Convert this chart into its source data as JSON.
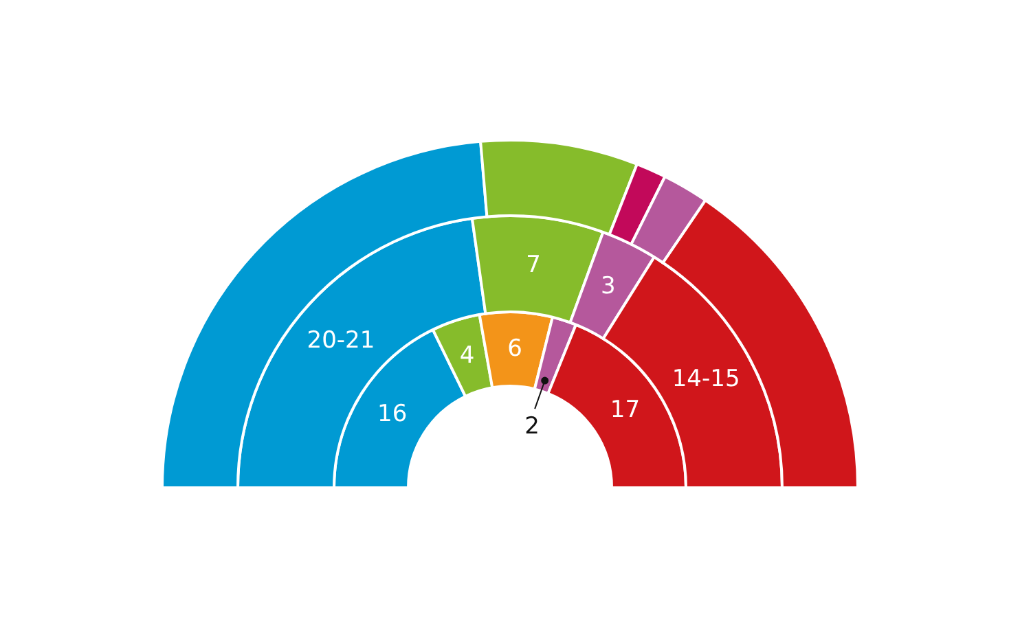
{
  "chart_data": {
    "type": "donut",
    "series": [
      {
        "values": [
          16,
          4,
          6,
          2,
          17
        ],
        "colors": [
          "#009ad3",
          "#86bc2b",
          "#f39419",
          "#b5589c",
          "#d0161b"
        ],
        "value_labels": [
          "16",
          "4",
          "6",
          "2",
          "17"
        ]
      },
      {
        "values": [
          20.5,
          7,
          3,
          14.5
        ],
        "colors": [
          "#009ad3",
          "#86bc2b",
          "#b5589c",
          "#d0161b"
        ],
        "value_labels": [
          "20-21",
          "7",
          "3",
          "14-15"
        ]
      },
      {
        "values": [
          47.3,
          14.6,
          2.8,
          4.3,
          31.0
        ],
        "colors": [
          "#009ad3",
          "#86bc2b",
          "#c2095a",
          "#b5589c",
          "#d0161b"
        ]
      }
    ]
  }
}
